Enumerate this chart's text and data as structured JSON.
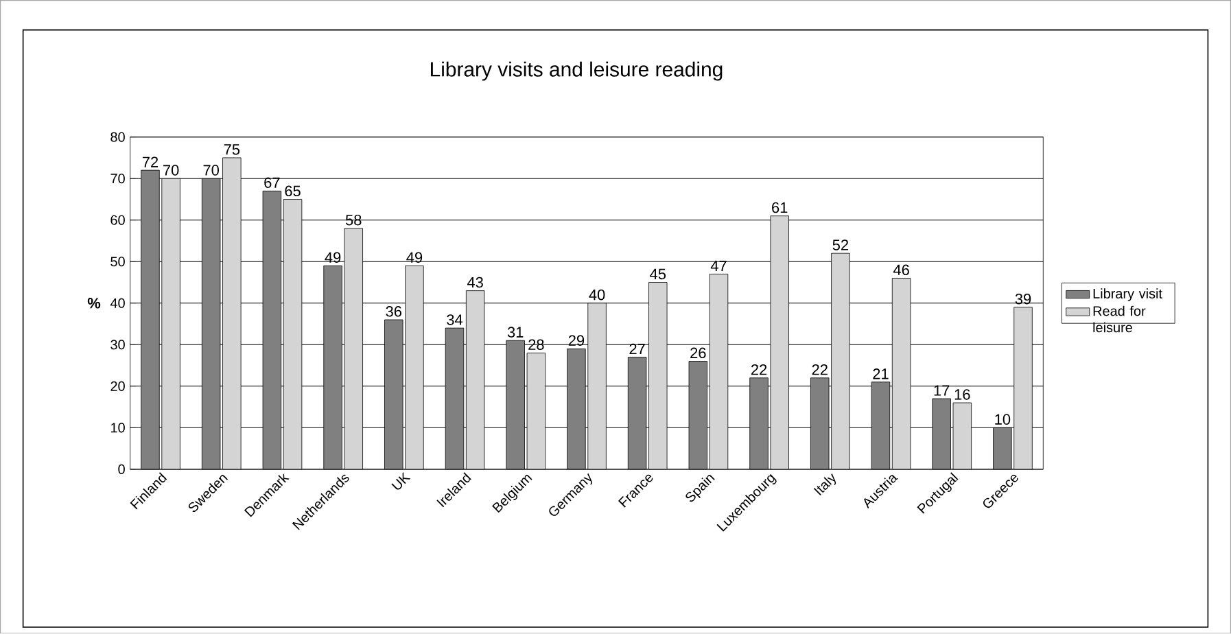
{
  "chart_data": {
    "type": "bar",
    "title": "Library visits and leisure reading",
    "ylabel": "%",
    "categories": [
      "Finland",
      "Sweden",
      "Denmark",
      "Netherlands",
      "UK",
      "Ireland",
      "Belgium",
      "Germany",
      "France",
      "Spain",
      "Luxembourg",
      "Italy",
      "Austria",
      "Portugal",
      "Greece"
    ],
    "series": [
      {
        "name": "Library visit",
        "color": "#808080",
        "values": [
          72,
          70,
          67,
          49,
          36,
          34,
          31,
          29,
          27,
          26,
          22,
          22,
          21,
          17,
          10
        ]
      },
      {
        "name": "Read for leisure",
        "color": "#d4d4d4",
        "values": [
          70,
          75,
          65,
          58,
          49,
          43,
          28,
          40,
          45,
          47,
          61,
          52,
          46,
          16,
          39
        ]
      }
    ],
    "ylim": [
      0,
      80
    ],
    "yticks": [
      0,
      10,
      20,
      30,
      40,
      50,
      60,
      70,
      80
    ],
    "grid": "y",
    "legend": "right",
    "data_labels": true
  }
}
